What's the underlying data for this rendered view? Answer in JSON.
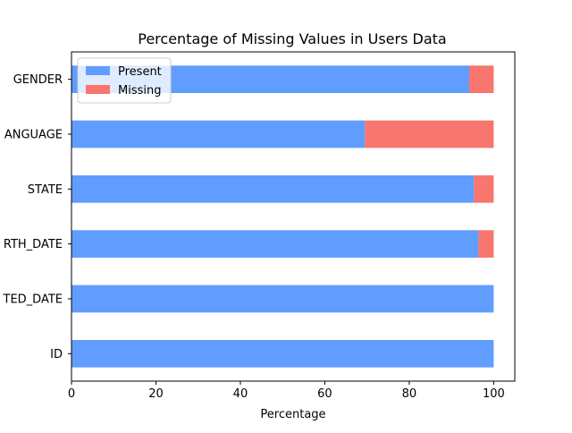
{
  "chart_data": {
    "type": "bar",
    "orientation": "horizontal",
    "stacked": true,
    "title": "Percentage of Missing Values in Users Data",
    "xlabel": "Percentage",
    "ylabel": "",
    "xlim": [
      0,
      105
    ],
    "x_ticks": [
      0,
      20,
      40,
      60,
      80,
      100
    ],
    "grid": false,
    "legend_position": "upper-left",
    "categories": [
      "GENDER",
      "ANGUAGE",
      "STATE",
      "RTH_DATE",
      "TED_DATE",
      "ID"
    ],
    "series": [
      {
        "name": "Present",
        "color": "#619cff",
        "values": [
          94.2,
          69.5,
          95.3,
          96.4,
          100,
          100
        ]
      },
      {
        "name": "Missing",
        "color": "#f8766d",
        "values": [
          5.8,
          30.5,
          4.7,
          3.6,
          0,
          0
        ]
      }
    ]
  }
}
